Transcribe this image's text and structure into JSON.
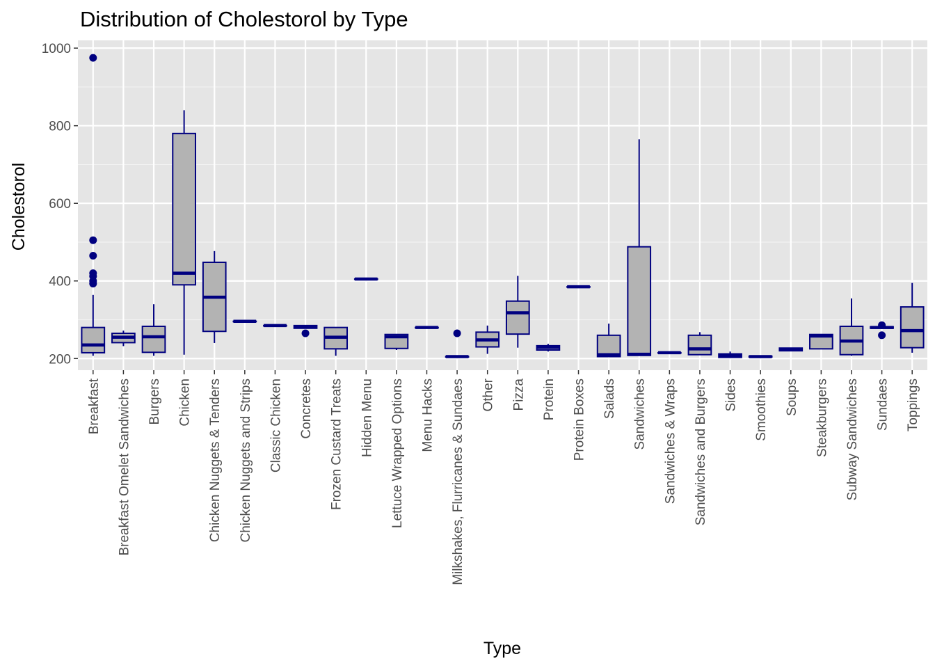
{
  "chart_data": {
    "type": "boxplot",
    "title": "Distribution of Cholestorol by Type",
    "xlabel": "Type",
    "ylabel": "Cholestorol",
    "ylim": [
      170,
      1020
    ],
    "yticks": [
      200,
      400,
      600,
      800,
      1000
    ],
    "grid": true,
    "legend": "none",
    "colors": {
      "panel": "#e5e5e5",
      "grid_major": "#ffffff",
      "box_fill": "#b3b3b3",
      "box_stroke": "#000080"
    },
    "categories": [
      {
        "label": "Breakfast",
        "lower": 207,
        "q1": 215,
        "median": 235,
        "q3": 280,
        "upper": 364,
        "outliers": [
          975,
          505,
          465,
          420,
          412,
          400,
          393
        ]
      },
      {
        "label": "Breakfast Omelet Sandwiches",
        "lower": 232,
        "q1": 241,
        "median": 255,
        "q3": 265,
        "upper": 272,
        "outliers": []
      },
      {
        "label": "Burgers",
        "lower": 207,
        "q1": 216,
        "median": 256,
        "q3": 283,
        "upper": 340,
        "outliers": []
      },
      {
        "label": "Chicken",
        "lower": 210,
        "q1": 390,
        "median": 420,
        "q3": 780,
        "upper": 840,
        "outliers": []
      },
      {
        "label": "Chicken Nuggets & Tenders",
        "lower": 240,
        "q1": 270,
        "median": 358,
        "q3": 448,
        "upper": 477,
        "outliers": []
      },
      {
        "label": "Chicken Nuggets and Strips",
        "lower": 296,
        "q1": 296,
        "median": 296,
        "q3": 296,
        "upper": 296,
        "outliers": []
      },
      {
        "label": "Classic Chicken",
        "lower": 285,
        "q1": 285,
        "median": 285,
        "q3": 285,
        "upper": 285,
        "outliers": []
      },
      {
        "label": "Concretes",
        "lower": 278,
        "q1": 278,
        "median": 282,
        "q3": 285,
        "upper": 285,
        "outliers": [
          265
        ]
      },
      {
        "label": "Frozen Custard Treats",
        "lower": 207,
        "q1": 225,
        "median": 255,
        "q3": 280,
        "upper": 280,
        "outliers": []
      },
      {
        "label": "Hidden Menu",
        "lower": 405,
        "q1": 405,
        "median": 405,
        "q3": 405,
        "upper": 405,
        "outliers": []
      },
      {
        "label": "Lettuce Wrapped Options",
        "lower": 222,
        "q1": 226,
        "median": 256,
        "q3": 262,
        "upper": 262,
        "outliers": []
      },
      {
        "label": "Menu Hacks",
        "lower": 280,
        "q1": 280,
        "median": 280,
        "q3": 280,
        "upper": 280,
        "outliers": []
      },
      {
        "label": "Milkshakes, Flurricanes & Sundaes",
        "lower": 205,
        "q1": 205,
        "median": 205,
        "q3": 205,
        "upper": 205,
        "outliers": [
          265
        ]
      },
      {
        "label": "Other",
        "lower": 212,
        "q1": 230,
        "median": 248,
        "q3": 268,
        "upper": 285,
        "outliers": []
      },
      {
        "label": "Pizza",
        "lower": 228,
        "q1": 263,
        "median": 318,
        "q3": 348,
        "upper": 413,
        "outliers": []
      },
      {
        "label": "Protein",
        "lower": 218,
        "q1": 222,
        "median": 229,
        "q3": 233,
        "upper": 238,
        "outliers": []
      },
      {
        "label": "Protein Boxes",
        "lower": 385,
        "q1": 385,
        "median": 385,
        "q3": 385,
        "upper": 385,
        "outliers": []
      },
      {
        "label": "Salads",
        "lower": 205,
        "q1": 205,
        "median": 210,
        "q3": 260,
        "upper": 290,
        "outliers": []
      },
      {
        "label": "Sandwiches",
        "lower": 208,
        "q1": 208,
        "median": 211,
        "q3": 488,
        "upper": 765,
        "outliers": []
      },
      {
        "label": "Sandwiches & Wraps",
        "lower": 215,
        "q1": 215,
        "median": 215,
        "q3": 215,
        "upper": 215,
        "outliers": []
      },
      {
        "label": "Sandwiches and Burgers",
        "lower": 210,
        "q1": 210,
        "median": 225,
        "q3": 260,
        "upper": 268,
        "outliers": []
      },
      {
        "label": "Sides",
        "lower": 203,
        "q1": 203,
        "median": 207,
        "q3": 212,
        "upper": 218,
        "outliers": []
      },
      {
        "label": "Smoothies",
        "lower": 204,
        "q1": 204,
        "median": 205,
        "q3": 206,
        "upper": 206,
        "outliers": []
      },
      {
        "label": "Soups",
        "lower": 220,
        "q1": 220,
        "median": 224,
        "q3": 227,
        "upper": 227,
        "outliers": []
      },
      {
        "label": "Steakburgers",
        "lower": 225,
        "q1": 225,
        "median": 258,
        "q3": 262,
        "upper": 262,
        "outliers": []
      },
      {
        "label": "Subway Sandwiches",
        "lower": 207,
        "q1": 210,
        "median": 245,
        "q3": 283,
        "upper": 355,
        "outliers": []
      },
      {
        "label": "Sundaes",
        "lower": 278,
        "q1": 278,
        "median": 280,
        "q3": 282,
        "upper": 282,
        "outliers": [
          286,
          260
        ]
      },
      {
        "label": "Toppings",
        "lower": 215,
        "q1": 228,
        "median": 272,
        "q3": 333,
        "upper": 395,
        "outliers": []
      }
    ]
  }
}
